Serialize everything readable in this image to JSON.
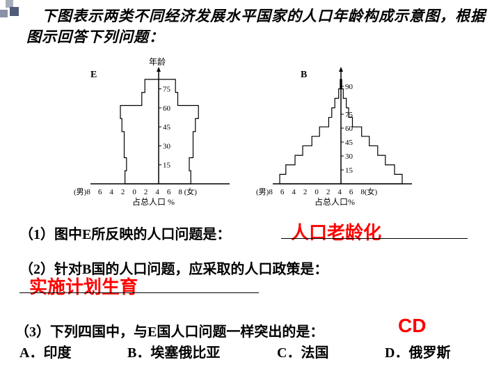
{
  "intro": "　下图表示两类不同经济发展水平国家的人口年龄构成示意图，根据图示回答下列问题：",
  "chartE": {
    "label": "E",
    "yAxisTitle": "年龄",
    "xAxisLabel": "占总人口 %",
    "xScale": "(男)8　6　4　2　0　2　4　6　8 (女)",
    "yTicks": [
      "15",
      "30",
      "45",
      "60",
      "75"
    ],
    "leftBars": [
      4.4,
      4.2,
      4.5,
      4.5,
      4.8,
      5.0,
      2.2,
      1.8
    ],
    "rightBars": [
      4.2,
      4.0,
      4.5,
      4.5,
      4.8,
      5.2,
      2.5,
      2.2
    ],
    "colors": {
      "line": "#000000",
      "fill": "none"
    }
  },
  "chartB": {
    "label": "B",
    "yAxisTitle": "",
    "xAxisLabel": "占总人口%",
    "xScale": "(男)8　6　4　2　0　2　4　6　8(女)",
    "yTicks": [
      "15",
      "30",
      "45",
      "60",
      "75",
      "",
      "90"
    ],
    "leftBars": [
      8.0,
      7.2,
      6.0,
      5.0,
      3.8,
      2.8,
      1.6,
      1.2,
      0.8,
      0.3,
      0.1
    ],
    "rightBars": [
      8.0,
      7.0,
      5.8,
      4.8,
      3.7,
      2.7,
      1.5,
      1.0,
      0.7,
      0.3,
      0.1
    ],
    "colors": {
      "line": "#000000",
      "fill": "none"
    }
  },
  "q1": {
    "prompt": "（1）图中E所反映的人口问题是：",
    "answer": "人口老龄化"
  },
  "q2": {
    "prompt": "（2）针对B国的人口问题，应采取的人口政策是：",
    "answer": "实施计划生育"
  },
  "q3": {
    "prompt": "（3）下列四国中，与E国人口问题一样突出的是：",
    "answer": "CD",
    "options": {
      "A": "A．印度",
      "B": "B．埃塞俄比亚",
      "C": "C．法国",
      "D": "D．俄罗斯"
    }
  }
}
